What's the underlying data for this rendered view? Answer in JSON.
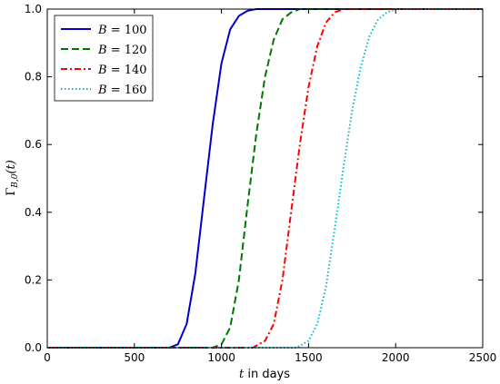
{
  "chart_data": {
    "type": "line",
    "xlabel_var": "t",
    "xlabel_rest": " in days",
    "ylabel_main": "Γ",
    "ylabel_sub": "B,0",
    "ylabel_tail": "(t)",
    "xlim": [
      0,
      2500
    ],
    "ylim": [
      0.0,
      1.0
    ],
    "xticks": [
      0,
      500,
      1000,
      1500,
      2000,
      2500
    ],
    "xtick_labels": [
      "0",
      "500",
      "1000",
      "1500",
      "2000",
      "2500"
    ],
    "yticks": [
      0.0,
      0.2,
      0.4,
      0.6,
      0.8,
      1.0
    ],
    "ytick_labels": [
      "0.0",
      "0.2",
      "0.4",
      "0.6",
      "0.8",
      "1.0"
    ],
    "grid": false,
    "legend_position": "top-left",
    "series": [
      {
        "name": "B = 100",
        "legend_var": "B",
        "legend_value": " = 100",
        "color": "#0000cc",
        "style": "solid",
        "x": [
          0,
          700,
          750,
          800,
          850,
          900,
          925,
          950,
          1000,
          1050,
          1100,
          1150,
          1200,
          1250,
          1300,
          2500
        ],
        "y": [
          0.0,
          0.0,
          0.01,
          0.07,
          0.22,
          0.44,
          0.55,
          0.66,
          0.84,
          0.94,
          0.98,
          0.995,
          1.0,
          1.0,
          1.0,
          1.0
        ]
      },
      {
        "name": "B = 120",
        "legend_var": "B",
        "legend_value": " = 120",
        "color": "#007700",
        "style": "dashed",
        "x": [
          0,
          950,
          1000,
          1050,
          1100,
          1150,
          1200,
          1250,
          1300,
          1350,
          1400,
          1450,
          1500,
          2500
        ],
        "y": [
          0.0,
          0.0,
          0.01,
          0.06,
          0.2,
          0.42,
          0.63,
          0.8,
          0.91,
          0.97,
          0.99,
          1.0,
          1.0,
          1.0
        ]
      },
      {
        "name": "B = 140",
        "legend_var": "B",
        "legend_value": " = 140",
        "color": "#ff0000",
        "style": "dashdot",
        "x": [
          0,
          1180,
          1250,
          1300,
          1350,
          1400,
          1450,
          1500,
          1550,
          1600,
          1650,
          1700,
          1750,
          2500
        ],
        "y": [
          0.0,
          0.0,
          0.02,
          0.07,
          0.2,
          0.4,
          0.6,
          0.77,
          0.89,
          0.96,
          0.99,
          1.0,
          1.0,
          1.0
        ]
      },
      {
        "name": "B = 160",
        "legend_var": "B",
        "legend_value": " = 160",
        "color": "#00bbcc",
        "style": "dotted",
        "x": [
          0,
          1430,
          1500,
          1550,
          1600,
          1650,
          1700,
          1750,
          1800,
          1850,
          1900,
          1950,
          2000,
          2100,
          2500
        ],
        "y": [
          0.0,
          0.0,
          0.02,
          0.07,
          0.18,
          0.35,
          0.53,
          0.7,
          0.83,
          0.92,
          0.97,
          0.99,
          1.0,
          1.0,
          1.0
        ]
      }
    ]
  }
}
